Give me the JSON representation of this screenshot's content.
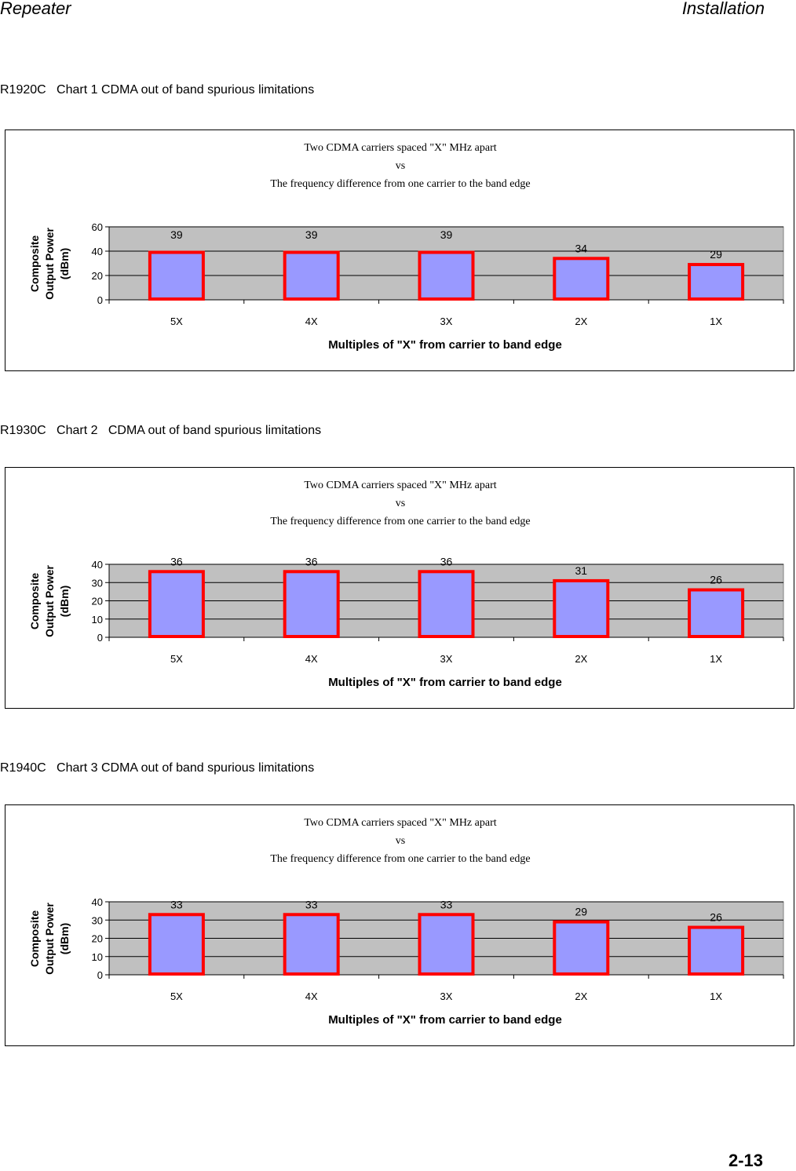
{
  "header": {
    "left": "Repeater",
    "right": "Installation"
  },
  "page_number": "2-13",
  "captions": [
    "R1920C   Chart 1 CDMA out of band spurious limitations",
    "R1930C   Chart 2   CDMA out of band spurious limitations",
    "R1940C   Chart 3 CDMA out of band spurious limitations"
  ],
  "colors": {
    "plot_bg": "#c0c0c0",
    "bar_fill": "#9999ff",
    "bar_border": "#ff0000"
  },
  "chart_data": [
    {
      "type": "bar",
      "title": [
        "Two CDMA carriers spaced \"X\" MHz apart",
        "vs",
        "The frequency difference from one carrier to the band edge"
      ],
      "categories": [
        "5X",
        "4X",
        "3X",
        "2X",
        "1X"
      ],
      "values": [
        39,
        39,
        39,
        34,
        29
      ],
      "ylim": [
        0,
        60
      ],
      "yticks": [
        0,
        20,
        40,
        60
      ],
      "ylabel": [
        "Composite",
        "Output Power",
        "(dBm)"
      ],
      "xlabel": "Multiples of \"X\" from carrier to band edge"
    },
    {
      "type": "bar",
      "title": [
        "Two CDMA carriers spaced \"X\" MHz apart",
        "vs",
        "The frequency difference from one carrier to the band edge"
      ],
      "categories": [
        "5X",
        "4X",
        "3X",
        "2X",
        "1X"
      ],
      "values": [
        36,
        36,
        36,
        31,
        26
      ],
      "ylim": [
        0,
        40
      ],
      "yticks": [
        0,
        10,
        20,
        30,
        40
      ],
      "ylabel": [
        "Composite",
        "Output Power",
        "(dBm)"
      ],
      "xlabel": "Multiples of \"X\" from carrier to band edge"
    },
    {
      "type": "bar",
      "title": [
        "Two CDMA carriers spaced \"X\" MHz apart",
        "vs",
        "The frequency difference from one carrier to the band edge"
      ],
      "categories": [
        "5X",
        "4X",
        "3X",
        "2X",
        "1X"
      ],
      "values": [
        33,
        33,
        33,
        29,
        26
      ],
      "ylim": [
        0,
        40
      ],
      "yticks": [
        0,
        10,
        20,
        30,
        40
      ],
      "ylabel": [
        "Composite",
        "Output Power",
        "(dBm)"
      ],
      "xlabel": "Multiples of \"X\" from carrier to band edge"
    }
  ]
}
